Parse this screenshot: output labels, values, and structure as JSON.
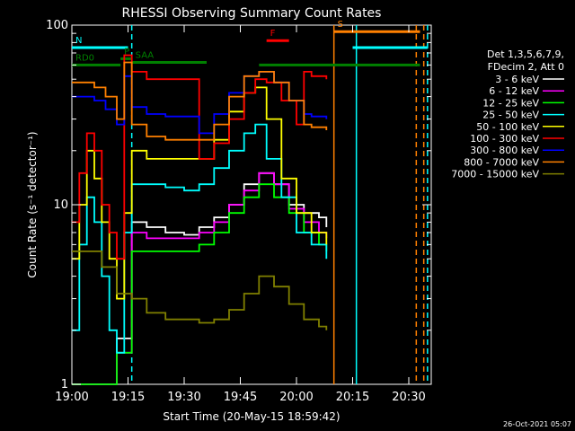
{
  "chart_data": {
    "type": "line",
    "title": "RHESSI Observing Summary Count Rates",
    "xlabel": "Start Time (20-May-15 18:59:42)",
    "ylabel": "Count Rate (s⁻¹ detector⁻¹)",
    "yscale": "log",
    "ylim": [
      1,
      100
    ],
    "xlim": [
      "19:00",
      "20:36"
    ],
    "x_ticks": [
      "19:00",
      "19:15",
      "19:30",
      "19:45",
      "20:00",
      "20:15",
      "20:30"
    ],
    "y_ticks": [
      "1",
      "10",
      "100"
    ],
    "legend_header": [
      "Det 1,3,5,6,7,9,",
      "FDecim 2, Att 0"
    ],
    "legend_position": "right",
    "series": [
      {
        "name": "3 - 6 keV",
        "color": "#ffffff",
        "x": [
          "19:00",
          "19:05",
          "19:09",
          "19:12",
          "19:16",
          "19:20",
          "19:25",
          "19:30",
          "19:34",
          "19:38",
          "19:42",
          "19:46",
          "19:50",
          "19:54",
          "19:58",
          "20:02",
          "20:06",
          "20:08"
        ],
        "values": [
          1,
          1,
          1,
          1.8,
          8,
          7.5,
          7,
          6.8,
          7.5,
          8.5,
          10,
          13,
          15,
          13,
          10,
          9,
          8.5,
          7.5
        ]
      },
      {
        "name": "6 - 12 keV",
        "color": "#ff00ff",
        "x": [
          "19:00",
          "19:05",
          "19:09",
          "19:12",
          "19:16",
          "19:20",
          "19:25",
          "19:30",
          "19:34",
          "19:38",
          "19:42",
          "19:46",
          "19:50",
          "19:54",
          "19:58",
          "20:02",
          "20:06",
          "20:08"
        ],
        "values": [
          1,
          1,
          1,
          1.5,
          7,
          6.5,
          6.5,
          6.5,
          7,
          8,
          10,
          12,
          15,
          13,
          9.5,
          8,
          7,
          6.5
        ]
      },
      {
        "name": "12 - 25 keV",
        "color": "#00ff00",
        "x": [
          "19:00",
          "19:05",
          "19:09",
          "19:12",
          "19:16",
          "19:20",
          "19:25",
          "19:30",
          "19:34",
          "19:38",
          "19:42",
          "19:46",
          "19:50",
          "19:54",
          "19:58",
          "20:02",
          "20:06",
          "20:08"
        ],
        "values": [
          1,
          1,
          1,
          1.5,
          5.5,
          5.5,
          5.5,
          5.5,
          6,
          7,
          9,
          11,
          13,
          11,
          9,
          7,
          6,
          5.5
        ]
      },
      {
        "name": "25 - 50 keV",
        "color": "#00ffff",
        "x": [
          "19:00",
          "19:02",
          "19:04",
          "19:06",
          "19:08",
          "19:10",
          "19:12",
          "19:14",
          "19:16",
          "19:20",
          "19:25",
          "19:30",
          "19:34",
          "19:38",
          "19:42",
          "19:46",
          "19:49",
          "19:52",
          "19:56",
          "20:00",
          "20:04",
          "20:08"
        ],
        "values": [
          2,
          6,
          11,
          8,
          4,
          2,
          1.5,
          7,
          13,
          13,
          12.5,
          12,
          13,
          16,
          20,
          25,
          28,
          18,
          11,
          7,
          6,
          5
        ]
      },
      {
        "name": "50 - 100 keV",
        "color": "#ffff00",
        "x": [
          "19:00",
          "19:02",
          "19:04",
          "19:06",
          "19:08",
          "19:10",
          "19:12",
          "19:14",
          "19:16",
          "19:20",
          "19:25",
          "19:30",
          "19:34",
          "19:38",
          "19:42",
          "19:46",
          "19:49",
          "19:52",
          "19:56",
          "20:00",
          "20:04",
          "20:08"
        ],
        "values": [
          5,
          10,
          20,
          14,
          8,
          5,
          3,
          9,
          20,
          18,
          18,
          18,
          18,
          23,
          33,
          42,
          45,
          30,
          14,
          9,
          7,
          6
        ]
      },
      {
        "name": "100 - 300 keV",
        "color": "#ff0000",
        "x": [
          "19:00",
          "19:02",
          "19:04",
          "19:06",
          "19:08",
          "19:10",
          "19:12",
          "19:14",
          "19:16",
          "19:20",
          "19:25",
          "19:30",
          "19:34",
          "19:38",
          "19:42",
          "19:46",
          "19:49",
          "19:52",
          "19:56",
          "20:00",
          "20:02",
          "20:04",
          "20:08"
        ],
        "values": [
          8,
          15,
          25,
          20,
          10,
          7,
          5,
          68,
          55,
          50,
          50,
          50,
          18,
          22,
          30,
          42,
          50,
          48,
          38,
          28,
          55,
          52,
          50
        ]
      },
      {
        "name": "300 - 800 keV",
        "color": "#0000ff",
        "x": [
          "19:00",
          "19:03",
          "19:06",
          "19:09",
          "19:12",
          "19:14",
          "19:16",
          "19:20",
          "19:25",
          "19:30",
          "19:34",
          "19:38",
          "19:42",
          "19:46",
          "19:50",
          "19:54",
          "19:58",
          "20:02",
          "20:04",
          "20:08"
        ],
        "values": [
          40,
          40,
          38,
          34,
          28,
          52,
          35,
          32,
          31,
          31,
          25,
          32,
          42,
          52,
          55,
          48,
          38,
          32,
          31,
          30
        ]
      },
      {
        "name": "800 - 7000 keV",
        "color": "#ff8000",
        "x": [
          "19:00",
          "19:03",
          "19:06",
          "19:09",
          "19:12",
          "19:14",
          "19:16",
          "19:20",
          "19:25",
          "19:30",
          "19:34",
          "19:38",
          "19:42",
          "19:46",
          "19:50",
          "19:54",
          "19:58",
          "20:02",
          "20:04",
          "20:08"
        ],
        "values": [
          48,
          48,
          45,
          40,
          30,
          62,
          28,
          24,
          23,
          23,
          23,
          28,
          40,
          52,
          55,
          48,
          38,
          28,
          27,
          26
        ]
      },
      {
        "name": "7000 - 15000 keV",
        "color": "#808000",
        "x": [
          "19:00",
          "19:04",
          "19:08",
          "19:12",
          "19:16",
          "19:20",
          "19:25",
          "19:30",
          "19:34",
          "19:38",
          "19:42",
          "19:46",
          "19:50",
          "19:54",
          "19:58",
          "20:02",
          "20:06",
          "20:08"
        ],
        "values": [
          5.5,
          5.5,
          4.5,
          3.2,
          3,
          2.5,
          2.3,
          2.3,
          2.2,
          2.3,
          2.6,
          3.2,
          4,
          3.5,
          2.8,
          2.3,
          2.1,
          2
        ]
      }
    ],
    "attenuator_annotations": [
      {
        "label": "N",
        "color": "#00ffff",
        "x_start": "19:00",
        "x_end": "19:15",
        "level": 75
      },
      {
        "label": "RD0",
        "color": "#008000",
        "x_start": "19:00",
        "x_end": "19:13",
        "level": 60
      },
      {
        "label": "P",
        "color": "#008000",
        "x_start": "19:13",
        "x_end": "19:16",
        "level": 65
      },
      {
        "label": "SAA",
        "color": "#008000",
        "x_start": "19:16",
        "x_end": "19:36",
        "level": 62
      },
      {
        "label": "F",
        "color": "#ff0000",
        "x_start": "19:52",
        "x_end": "19:58",
        "level": 82
      },
      {
        "label": "S",
        "color": "#ff8000",
        "x_start": "20:10",
        "x_end": "20:33",
        "level": 92
      },
      {
        "label": "",
        "color": "#00ffff",
        "x_start": "20:15",
        "x_end": "20:35",
        "level": 75
      },
      {
        "label": "",
        "color": "#008000",
        "x_start": "19:50",
        "x_end": "20:33",
        "level": 60
      }
    ],
    "vertical_markers": [
      {
        "x": "19:16",
        "color": "#00ffff",
        "style": "dashed"
      },
      {
        "x": "20:10",
        "color": "#ff8000",
        "style": "solid"
      },
      {
        "x": "20:16",
        "color": "#00ffff",
        "style": "solid"
      },
      {
        "x": "20:32",
        "color": "#ff8000",
        "style": "dashed"
      },
      {
        "x": "20:34",
        "color": "#ff8000",
        "style": "dashed"
      },
      {
        "x": "20:35",
        "color": "#00ffff",
        "style": "dashed"
      }
    ]
  },
  "footer": {
    "timestamp": "26-Oct-2021 05:07"
  }
}
